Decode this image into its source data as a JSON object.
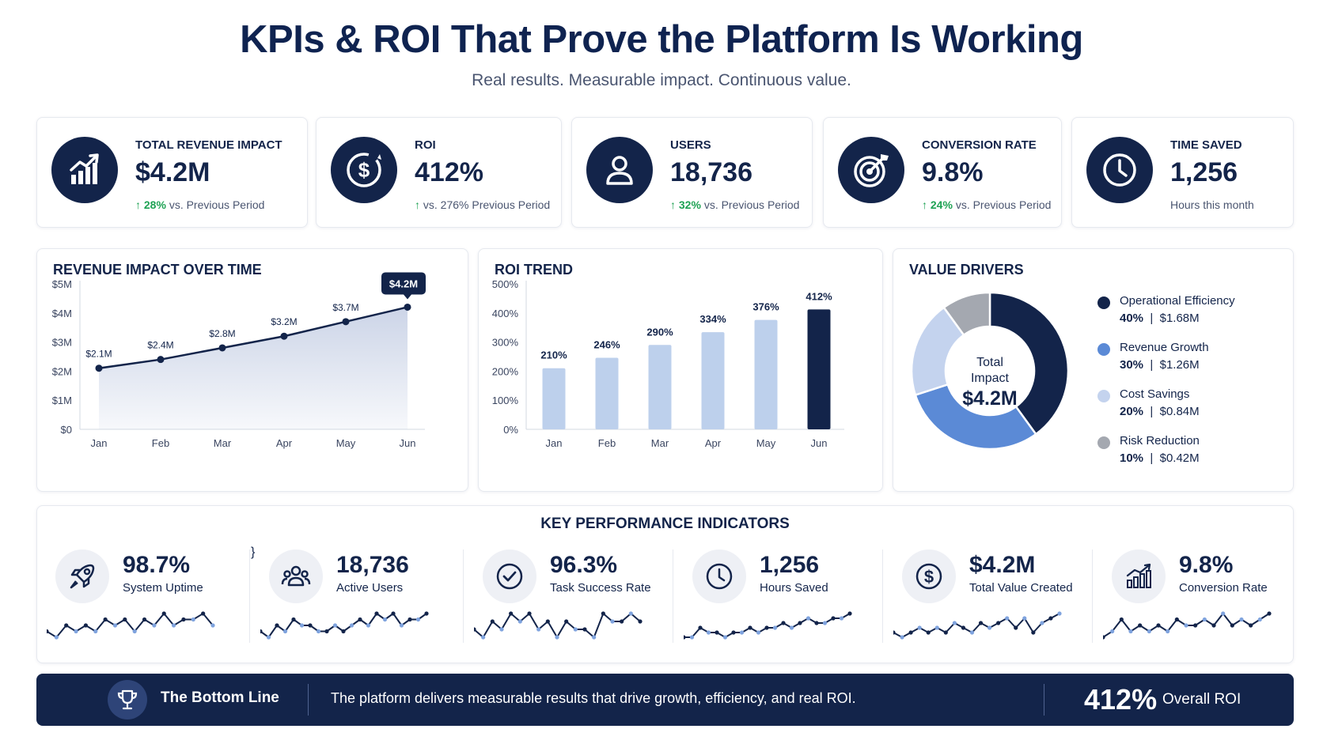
{
  "header": {
    "title": "KPIs & ROI That Prove the Platform Is Working",
    "subtitle": "Real results. Measurable impact. Continuous value."
  },
  "kpi_cards": [
    {
      "label": "TOTAL REVENUE IMPACT",
      "value": "$4.2M",
      "change": "28%",
      "change_text": "vs. Previous Period",
      "icon": "revenue-chart-icon"
    },
    {
      "label": "ROI",
      "value": "412%",
      "change": "",
      "change_text": "vs. 276% Previous Period",
      "icon": "dollar-circle-icon"
    },
    {
      "label": "USERS",
      "value": "18,736",
      "change": "32%",
      "change_text": "vs. Previous Period",
      "icon": "user-icon"
    },
    {
      "label": "CONVERSION RATE",
      "value": "9.8%",
      "change": "24%",
      "change_text": "vs. Previous Period",
      "icon": "target-icon"
    },
    {
      "label": "TIME SAVED",
      "value": "1,256",
      "change": "",
      "change_text": "Hours this month",
      "icon": "clock-icon"
    }
  ],
  "panels": {
    "revenue": {
      "title": "REVENUE IMPACT OVER TIME"
    },
    "roi": {
      "title": "ROI TREND"
    },
    "drivers": {
      "title": "VALUE DRIVERS",
      "center_line1": "Total",
      "center_line2": "Impact",
      "center_value": "$4.2M"
    }
  },
  "chart_data": [
    {
      "type": "area",
      "title": "REVENUE IMPACT OVER TIME",
      "categories": [
        "Jan",
        "Feb",
        "Mar",
        "Apr",
        "May",
        "Jun"
      ],
      "values": [
        2.1,
        2.4,
        2.8,
        3.2,
        3.7,
        4.2
      ],
      "data_labels": [
        "$2.1M",
        "$2.4M",
        "$2.8M",
        "$3.2M",
        "$3.7M",
        "$4.2M"
      ],
      "yticks": [
        "$0",
        "$1M",
        "$2M",
        "$3M",
        "$4M",
        "$5M"
      ],
      "ylim": [
        0,
        5
      ],
      "grid": false,
      "colors": {
        "line": "#13244a",
        "fill": "#c9d2e6",
        "callout": "#13244a"
      }
    },
    {
      "type": "bar",
      "title": "ROI TREND",
      "categories": [
        "Jan",
        "Feb",
        "Mar",
        "Apr",
        "May",
        "Jun"
      ],
      "values": [
        210,
        246,
        290,
        334,
        376,
        412
      ],
      "data_labels": [
        "210%",
        "246%",
        "290%",
        "334%",
        "376%",
        "412%"
      ],
      "yticks": [
        "0%",
        "100%",
        "200%",
        "300%",
        "400%",
        "500%"
      ],
      "ylim": [
        0,
        500
      ],
      "grid": false,
      "colors": {
        "bar": "#bdd0ec",
        "highlight": "#13244a"
      }
    },
    {
      "type": "pie",
      "title": "VALUE DRIVERS",
      "slices": [
        {
          "name": "Operational Efficiency",
          "percent": 40,
          "percent_label": "40%",
          "amount": "$1.68M",
          "color": "#13244a"
        },
        {
          "name": "Revenue Growth",
          "percent": 30,
          "percent_label": "30%",
          "amount": "$1.26M",
          "color": "#5b8ad6"
        },
        {
          "name": "Cost Savings",
          "percent": 20,
          "percent_label": "20%",
          "amount": "$0.84M",
          "color": "#c4d3ee"
        },
        {
          "name": "Risk Reduction",
          "percent": 10,
          "percent_label": "10%",
          "amount": "$0.42M",
          "color": "#a4a8b0"
        }
      ],
      "legend": "right"
    }
  ],
  "kpi_section": {
    "title": "KEY PERFORMANCE INDICATORS",
    "items": [
      {
        "value": "98.7%",
        "label": "System Uptime",
        "icon": "rocket-icon",
        "spark": [
          2,
          1,
          3,
          2,
          3,
          2,
          4,
          3,
          4,
          2,
          4,
          3,
          5,
          3,
          4,
          4,
          5,
          3
        ]
      },
      {
        "value": "18,736",
        "label": "Active Users",
        "icon": "users-group-icon",
        "spark": [
          2,
          1,
          3,
          2,
          4,
          3,
          3,
          2,
          2,
          3,
          2,
          3,
          4,
          3,
          5,
          4,
          5,
          3,
          4,
          4,
          5
        ]
      },
      {
        "value": "96.3%",
        "label": "Task Success Rate",
        "icon": "check-circle-icon",
        "spark": [
          3,
          2,
          4,
          3,
          5,
          4,
          5,
          3,
          4,
          2,
          4,
          3,
          3,
          2,
          5,
          4,
          4,
          5,
          4
        ]
      },
      {
        "value": "1,256",
        "label": "Hours Saved",
        "icon": "clock-icon",
        "spark": [
          1,
          1,
          3,
          2,
          2,
          1,
          2,
          2,
          3,
          2,
          3,
          3,
          4,
          3,
          4,
          5,
          4,
          4,
          5,
          5,
          6
        ]
      },
      {
        "value": "$4.2M",
        "label": "Total Value Created",
        "icon": "dollar-circle-icon",
        "spark": [
          2,
          1,
          2,
          3,
          2,
          3,
          2,
          4,
          3,
          2,
          4,
          3,
          4,
          5,
          3,
          5,
          2,
          4,
          5,
          6
        ]
      },
      {
        "value": "9.8%",
        "label": "Conversion Rate",
        "icon": "bar-growth-icon",
        "spark": [
          1,
          2,
          4,
          2,
          3,
          2,
          3,
          2,
          4,
          3,
          3,
          4,
          3,
          5,
          3,
          4,
          3,
          4,
          5
        ]
      }
    ]
  },
  "banner": {
    "title": "The Bottom Line",
    "text": "The platform delivers measurable results that drive growth, efficiency, and real ROI.",
    "roi_value": "412%",
    "roi_label": "Overall ROI",
    "icon": "trophy-icon"
  }
}
